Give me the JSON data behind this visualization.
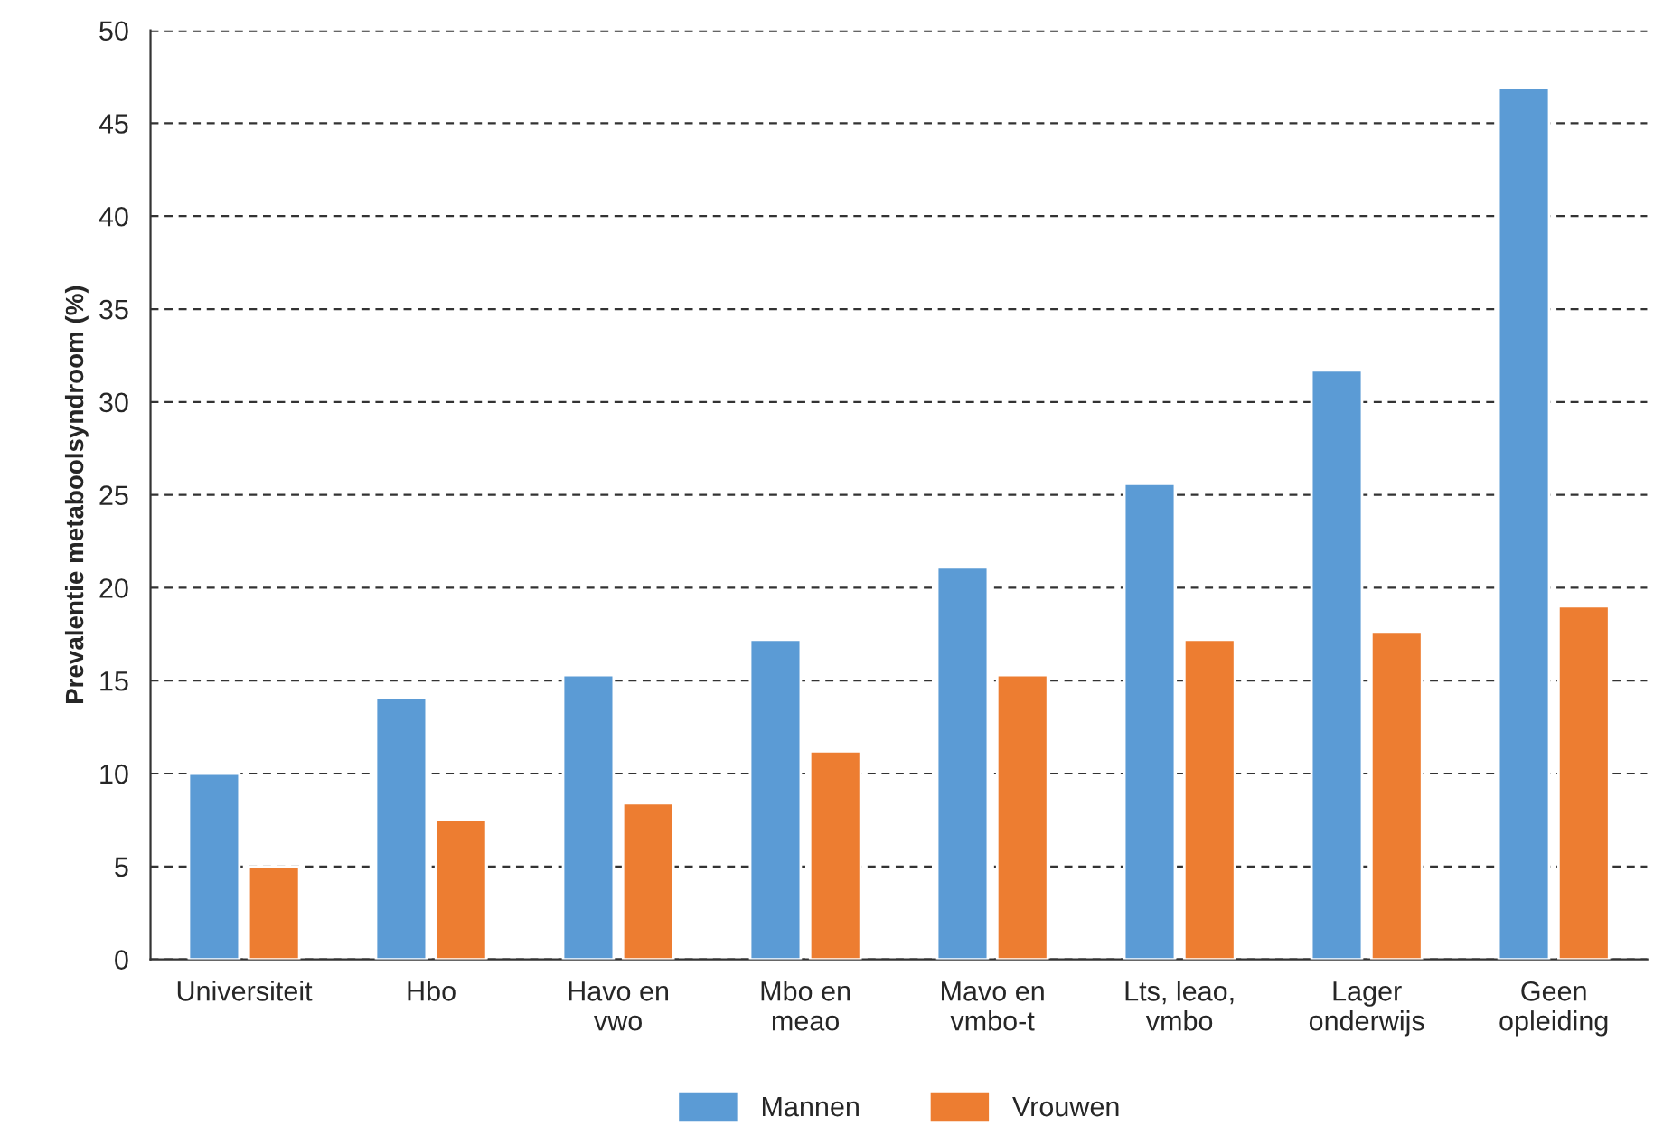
{
  "chart_data": {
    "type": "bar",
    "ylabel": "Prevalentie metaboolsyndroom (%)",
    "categories": [
      "Universiteit",
      "Hbo",
      "Havo en\nvwo",
      "Mbo en\nmeao",
      "Mavo en\nvmbo-t",
      "Lts, leao,\nvmbo",
      "Lager\nonderwijs",
      "Geen\nopleiding"
    ],
    "series": [
      {
        "name": "Mannen",
        "color": "#5b9bd5",
        "values": [
          10.0,
          14.1,
          15.3,
          17.2,
          21.1,
          25.6,
          31.7,
          46.9
        ]
      },
      {
        "name": "Vrouwen",
        "color": "#ed7d31",
        "values": [
          5.0,
          7.5,
          8.4,
          11.2,
          15.3,
          17.2,
          17.6,
          19.0
        ]
      }
    ],
    "ylim": [
      0,
      50
    ],
    "yticks": [
      0,
      5,
      10,
      15,
      20,
      25,
      30,
      35,
      40,
      45,
      50
    ],
    "grid": "y",
    "legend": "bottom"
  }
}
